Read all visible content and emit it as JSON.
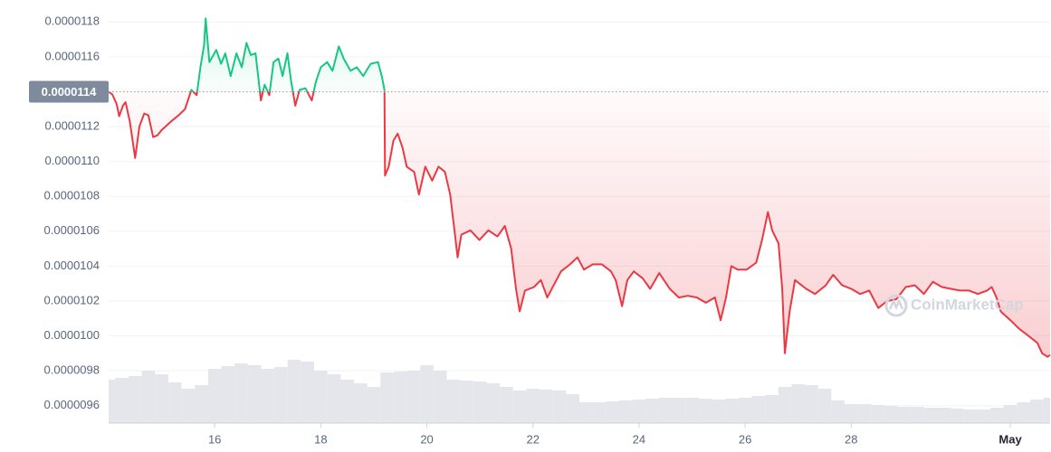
{
  "chart_data": {
    "type": "line",
    "x": [
      14.0,
      14.07,
      14.15,
      14.2,
      14.27,
      14.32,
      14.4,
      14.5,
      14.58,
      14.67,
      14.75,
      14.84,
      14.92,
      15.0,
      15.18,
      15.32,
      15.44,
      15.56,
      15.66,
      15.73,
      15.8,
      15.83,
      15.9,
      16.03,
      16.12,
      16.2,
      16.3,
      16.41,
      16.51,
      16.6,
      16.68,
      16.77,
      16.87,
      16.94,
      17.03,
      17.11,
      17.2,
      17.28,
      17.37,
      17.44,
      17.52,
      17.6,
      17.71,
      17.83,
      17.91,
      18.0,
      18.12,
      18.22,
      18.34,
      18.43,
      18.56,
      18.68,
      18.8,
      18.94,
      19.08,
      19.15,
      19.2,
      19.21,
      19.28,
      19.37,
      19.45,
      19.54,
      19.62,
      19.76,
      19.85,
      19.97,
      20.1,
      20.22,
      20.34,
      20.44,
      20.53,
      20.58,
      20.65,
      20.82,
      20.99,
      21.16,
      21.33,
      21.47,
      21.59,
      21.68,
      21.75,
      21.85,
      22.02,
      22.15,
      22.27,
      22.39,
      22.53,
      22.7,
      22.84,
      22.96,
      23.13,
      23.3,
      23.47,
      23.56,
      23.68,
      23.78,
      23.9,
      24.07,
      24.21,
      24.38,
      24.58,
      24.75,
      24.92,
      25.09,
      25.26,
      25.43,
      25.54,
      25.64,
      25.74,
      25.86,
      26.03,
      26.21,
      26.32,
      26.43,
      26.51,
      26.63,
      26.7,
      26.75,
      26.84,
      26.94,
      27.15,
      27.32,
      27.52,
      27.66,
      27.83,
      28.0,
      28.17,
      28.34,
      28.51,
      28.68,
      28.85,
      29.03,
      29.2,
      29.37,
      29.54,
      29.71,
      29.88,
      30.05,
      30.22,
      30.39,
      30.56,
      30.65,
      30.74,
      30.82,
      31.0,
      31.17,
      31.34,
      31.51,
      31.6,
      31.7,
      31.75
    ],
    "values": [
      1.14e-05,
      1.1384e-05,
      1.133e-05,
      1.126e-05,
      1.132e-05,
      1.134e-05,
      1.123e-05,
      1.102e-05,
      1.12e-05,
      1.1275e-05,
      1.1265e-05,
      1.114e-05,
      1.115e-05,
      1.118e-05,
      1.123e-05,
      1.1265e-05,
      1.13e-05,
      1.141e-05,
      1.138e-05,
      1.154e-05,
      1.167e-05,
      1.182e-05,
      1.157e-05,
      1.164e-05,
      1.156e-05,
      1.162e-05,
      1.149e-05,
      1.162e-05,
      1.154e-05,
      1.168e-05,
      1.161e-05,
      1.162e-05,
      1.135e-05,
      1.144e-05,
      1.138e-05,
      1.157e-05,
      1.159e-05,
      1.149e-05,
      1.162e-05,
      1.146e-05,
      1.132e-05,
      1.141e-05,
      1.142e-05,
      1.135e-05,
      1.146e-05,
      1.154e-05,
      1.157e-05,
      1.152e-05,
      1.166e-05,
      1.159e-05,
      1.152e-05,
      1.154e-05,
      1.149e-05,
      1.156e-05,
      1.157e-05,
      1.149e-05,
      1.141e-05,
      1.092e-05,
      1.097e-05,
      1.112e-05,
      1.116e-05,
      1.108e-05,
      1.097e-05,
      1.094e-05,
      1.081e-05,
      1.097e-05,
      1.089e-05,
      1.097e-05,
      1.094e-05,
      1.081e-05,
      1.058e-05,
      1.045e-05,
      1.058e-05,
      1.0605e-05,
      1.055e-05,
      1.0605e-05,
      1.057e-05,
      1.063e-05,
      1.05e-05,
      1.027e-05,
      1.014e-05,
      1.026e-05,
      1.028e-05,
      1.032e-05,
      1.022e-05,
      1.029e-05,
      1.037e-05,
      1.041e-05,
      1.045e-05,
      1.038e-05,
      1.041e-05,
      1.041e-05,
      1.037e-05,
      1.032e-05,
      1.017e-05,
      1.032e-05,
      1.037e-05,
      1.033e-05,
      1.027e-05,
      1.036e-05,
      1.027e-05,
      1.022e-05,
      1.023e-05,
      1.022e-05,
      1.019e-05,
      1.022e-05,
      1.009e-05,
      1.022e-05,
      1.04e-05,
      1.038e-05,
      1.038e-05,
      1.042e-05,
      1.055e-05,
      1.071e-05,
      1.0605e-05,
      1.053e-05,
      1.027e-05,
      9.9e-06,
      1.014e-05,
      1.032e-05,
      1.027e-05,
      1.024e-05,
      1.029e-05,
      1.035e-05,
      1.029e-05,
      1.027e-05,
      1.024e-05,
      1.026e-05,
      1.016e-05,
      1.02e-05,
      1.021e-05,
      1.028e-05,
      1.029e-05,
      1.024e-05,
      1.031e-05,
      1.028e-05,
      1.027e-05,
      1.026e-05,
      1.026e-05,
      1.024e-05,
      1.026e-05,
      1.028e-05,
      1.022e-05,
      1.014e-05,
      1.009e-05,
      1.004e-05,
      1e-05,
      9.96e-06,
      9.9e-06,
      9.88e-06,
      9.89e-06
    ],
    "color_up": "#16c784",
    "color_down": "#ea3943",
    "reference_line": {
      "value": 1.14e-05,
      "label": "0.0000114"
    },
    "xlim": [
      14,
      31.75
    ],
    "xticks": [
      16,
      18,
      20,
      22,
      24,
      26,
      28,
      {
        "value": 31,
        "label": "May"
      }
    ],
    "ylim": [
      9.5e-06,
      1.19e-05
    ],
    "yticks": [
      {
        "value": 1.18e-05,
        "label": "0.0000118"
      },
      {
        "value": 1.16e-05,
        "label": "0.0000116"
      },
      {
        "value": 1.12e-05,
        "label": "0.0000112"
      },
      {
        "value": 1.1e-05,
        "label": "0.0000110"
      },
      {
        "value": 1.08e-05,
        "label": "0.0000108"
      },
      {
        "value": 1.06e-05,
        "label": "0.0000106"
      },
      {
        "value": 1.04e-05,
        "label": "0.0000104"
      },
      {
        "value": 1.02e-05,
        "label": "0.0000102"
      },
      {
        "value": 1e-05,
        "label": "0.0000100"
      },
      {
        "value": 9.8e-06,
        "label": "0.0000098"
      },
      {
        "value": 9.6e-06,
        "label": "0.0000096"
      }
    ],
    "grid": true,
    "volume": {
      "color": "#e4e6ec",
      "ylim": [
        0,
        100
      ],
      "x": [
        14.0,
        14.25,
        14.5,
        14.75,
        15.0,
        15.25,
        15.5,
        15.75,
        16.0,
        16.25,
        16.5,
        16.75,
        17.0,
        17.25,
        17.5,
        17.75,
        18.0,
        18.25,
        18.5,
        18.75,
        19.0,
        19.25,
        19.5,
        19.75,
        20.0,
        20.25,
        20.5,
        20.75,
        21.0,
        21.25,
        21.5,
        21.75,
        22.0,
        22.25,
        22.5,
        22.75,
        23.0,
        23.25,
        23.5,
        23.75,
        24.0,
        24.25,
        24.5,
        24.75,
        25.0,
        25.25,
        25.5,
        25.75,
        26.0,
        26.25,
        26.5,
        26.75,
        27.0,
        27.25,
        27.5,
        27.75,
        28.0,
        28.25,
        28.5,
        28.75,
        29.0,
        29.25,
        29.5,
        29.75,
        30.0,
        30.25,
        30.5,
        30.75,
        31.0,
        31.25,
        31.5,
        31.75
      ],
      "values": [
        48,
        50,
        52,
        58,
        54,
        45,
        38,
        42,
        60,
        63,
        66,
        64,
        60,
        62,
        70,
        68,
        58,
        54,
        48,
        44,
        40,
        56,
        57,
        58,
        64,
        58,
        48,
        47,
        46,
        44,
        40,
        36,
        38,
        37,
        36,
        32,
        23,
        23,
        24,
        25,
        26,
        27,
        28,
        28,
        28,
        27,
        26,
        27,
        28,
        30,
        31,
        40,
        43,
        42,
        38,
        25,
        21,
        21,
        20,
        19,
        18,
        18,
        17,
        17,
        16,
        15,
        15,
        17,
        20,
        23,
        26,
        28
      ]
    },
    "watermark": "CoinMarketCap"
  }
}
